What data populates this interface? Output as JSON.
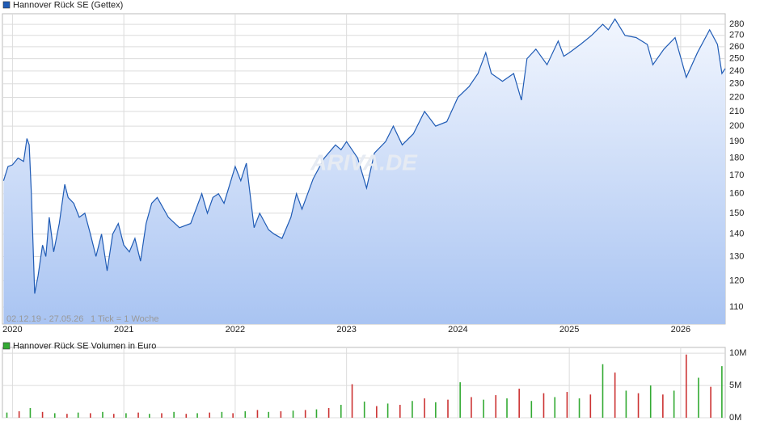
{
  "chart_data": [
    {
      "type": "area",
      "scale": "log",
      "grid": true,
      "series": [
        {
          "name": "Hannover Rück SE (Gettex)",
          "color": "#1f5bb5"
        }
      ],
      "date_range": "02.12.19 - 27.05.26",
      "tick_info": "1 Tick = 1 Woche",
      "watermark": "ARIVA.DE",
      "x": [
        2019.92,
        2019.96,
        2020.0,
        2020.05,
        2020.1,
        2020.13,
        2020.15,
        2020.17,
        2020.2,
        2020.23,
        2020.27,
        2020.3,
        2020.33,
        2020.37,
        2020.42,
        2020.47,
        2020.5,
        2020.55,
        2020.6,
        2020.65,
        2020.7,
        2020.75,
        2020.8,
        2020.85,
        2020.9,
        2020.95,
        2021.0,
        2021.05,
        2021.1,
        2021.15,
        2021.2,
        2021.25,
        2021.3,
        2021.4,
        2021.5,
        2021.6,
        2021.7,
        2021.75,
        2021.8,
        2021.85,
        2021.9,
        2022.0,
        2022.05,
        2022.1,
        2022.17,
        2022.22,
        2022.27,
        2022.3,
        2022.35,
        2022.42,
        2022.5,
        2022.55,
        2022.6,
        2022.7,
        2022.8,
        2022.9,
        2022.95,
        2023.0,
        2023.1,
        2023.18,
        2023.25,
        2023.35,
        2023.42,
        2023.5,
        2023.6,
        2023.7,
        2023.8,
        2023.9,
        2024.0,
        2024.1,
        2024.18,
        2024.25,
        2024.3,
        2024.4,
        2024.5,
        2024.57,
        2024.62,
        2024.7,
        2024.8,
        2024.9,
        2024.95,
        2025.0,
        2025.1,
        2025.2,
        2025.3,
        2025.35,
        2025.41,
        2025.5,
        2025.6,
        2025.7,
        2025.75,
        2025.85,
        2025.95,
        2026.05,
        2026.15,
        2026.26,
        2026.33,
        2026.37,
        2026.4
      ],
      "values": [
        167,
        175,
        176,
        180,
        178,
        192,
        188,
        160,
        115,
        122,
        135,
        130,
        148,
        132,
        145,
        165,
        158,
        155,
        148,
        150,
        140,
        130,
        140,
        124,
        140,
        145,
        135,
        132,
        138,
        128,
        145,
        155,
        158,
        148,
        143,
        145,
        160,
        150,
        158,
        160,
        155,
        175,
        167,
        177,
        143,
        150,
        145,
        142,
        140,
        138,
        148,
        160,
        152,
        168,
        180,
        188,
        185,
        190,
        180,
        163,
        183,
        190,
        200,
        188,
        195,
        210,
        200,
        203,
        220,
        228,
        238,
        255,
        238,
        232,
        238,
        218,
        250,
        258,
        245,
        265,
        252,
        255,
        262,
        270,
        280,
        275,
        285,
        270,
        268,
        262,
        245,
        258,
        268,
        235,
        255,
        275,
        262,
        238,
        242
      ],
      "xlim": [
        2019.91,
        2026.4
      ],
      "xticks": [
        2020,
        2021,
        2022,
        2023,
        2024,
        2025,
        2026
      ],
      "ylim": [
        104,
        290
      ],
      "yticks": [
        110,
        120,
        130,
        140,
        150,
        160,
        170,
        180,
        190,
        200,
        210,
        220,
        230,
        240,
        250,
        260,
        270,
        280
      ]
    },
    {
      "type": "bar",
      "grid": true,
      "series": [
        {
          "name": "Hannover Rück SE Volumen in Euro",
          "color": "#33aa33"
        }
      ],
      "bar_colors": [
        "#33aa33",
        "#cc3333"
      ],
      "x": [
        2019.95,
        2020.06,
        2020.16,
        2020.27,
        2020.38,
        2020.49,
        2020.59,
        2020.7,
        2020.81,
        2020.91,
        2021.02,
        2021.13,
        2021.23,
        2021.34,
        2021.45,
        2021.56,
        2021.66,
        2021.77,
        2021.88,
        2021.98,
        2022.09,
        2022.2,
        2022.3,
        2022.41,
        2022.52,
        2022.63,
        2022.73,
        2022.84,
        2022.95,
        2023.05,
        2023.16,
        2023.27,
        2023.37,
        2023.48,
        2023.59,
        2023.7,
        2023.8,
        2023.91,
        2024.02,
        2024.12,
        2024.23,
        2024.34,
        2024.44,
        2024.55,
        2024.66,
        2024.77,
        2024.87,
        2024.98,
        2025.09,
        2025.19,
        2025.3,
        2025.41,
        2025.51,
        2025.62,
        2025.73,
        2025.84,
        2025.94,
        2026.05,
        2026.16,
        2026.27,
        2026.37
      ],
      "values": [
        800000,
        1000000,
        1500000,
        900000,
        700000,
        600000,
        800000,
        700000,
        900000,
        600000,
        700000,
        800000,
        600000,
        700000,
        900000,
        600000,
        700000,
        800000,
        900000,
        700000,
        1000000,
        1200000,
        900000,
        1000000,
        1100000,
        1200000,
        1300000,
        1500000,
        2000000,
        5200000,
        2500000,
        1800000,
        2200000,
        2000000,
        2600000,
        3000000,
        2400000,
        2800000,
        5500000,
        3200000,
        2800000,
        3500000,
        3000000,
        4500000,
        2600000,
        3800000,
        3200000,
        4000000,
        3000000,
        3600000,
        8300000,
        7000000,
        4200000,
        3800000,
        5000000,
        3600000,
        4200000,
        9800000,
        6200000,
        4800000,
        8000000
      ],
      "xlim": [
        2019.91,
        2026.4
      ],
      "ylim": [
        0,
        10900000
      ],
      "yticks": [
        {
          "value": 0,
          "label": "0M"
        },
        {
          "value": 5000000,
          "label": "5M"
        },
        {
          "value": 10000000,
          "label": "10M"
        }
      ]
    }
  ]
}
